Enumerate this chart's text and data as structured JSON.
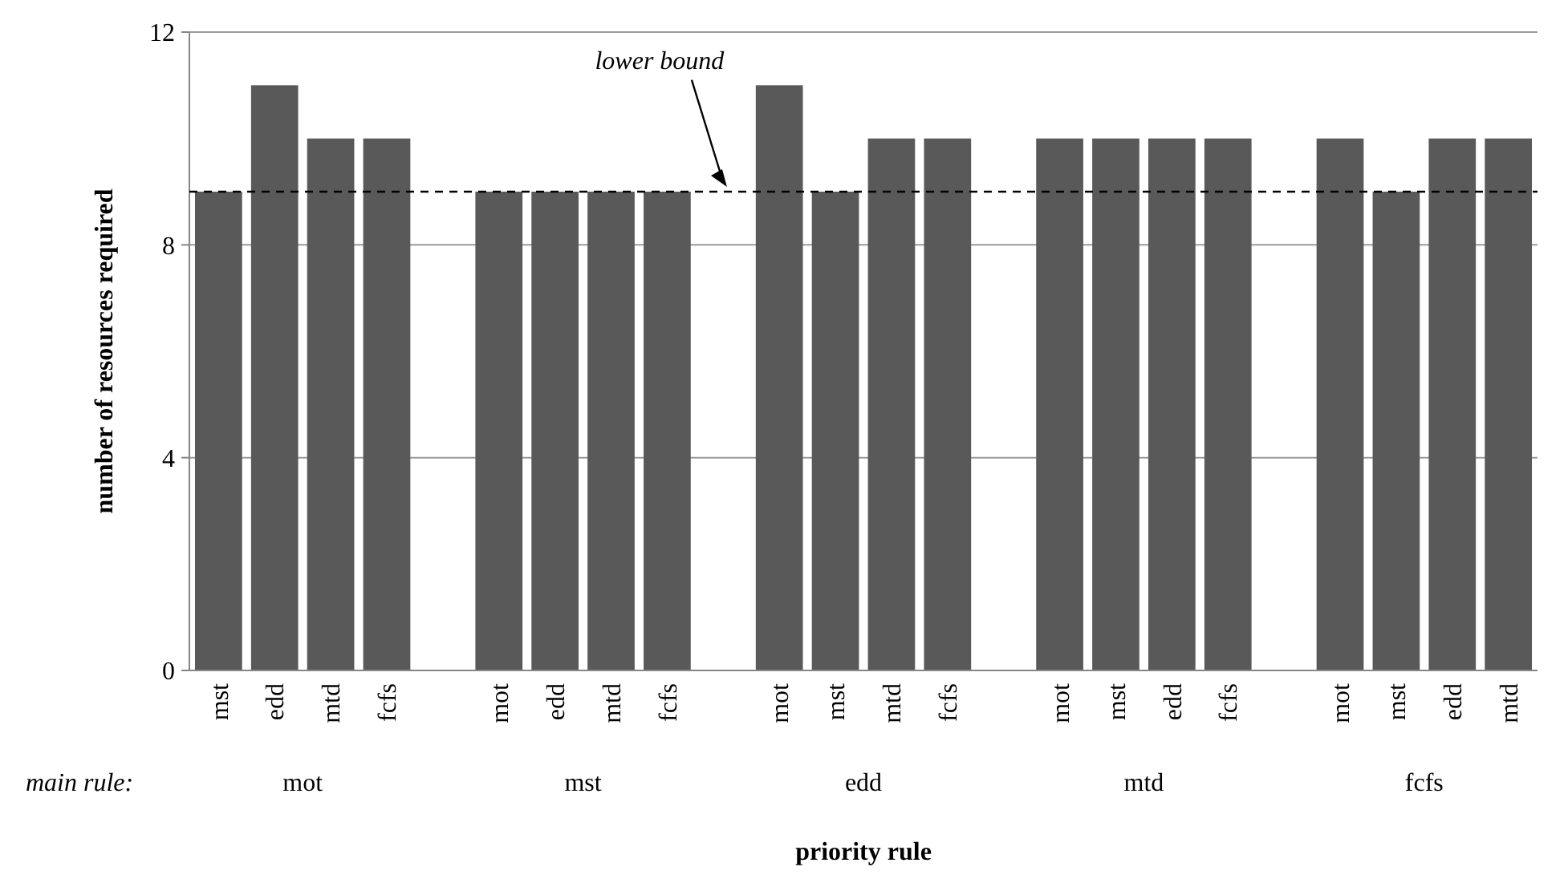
{
  "chart_data": {
    "type": "bar",
    "xlabel": "priority rule",
    "ylabel": "number of resources required",
    "categories": [
      "mst",
      "edd",
      "mtd",
      "fcfs",
      null,
      "mot",
      "edd",
      "mtd",
      "fcfs",
      null,
      "mot",
      "mst",
      "mtd",
      "fcfs",
      null,
      "mot",
      "mst",
      "edd",
      "fcfs",
      null,
      "mot",
      "mst",
      "edd",
      "mtd"
    ],
    "values": [
      9,
      11,
      10,
      10,
      null,
      9,
      9,
      9,
      9,
      null,
      11,
      9,
      10,
      10,
      null,
      10,
      10,
      10,
      10,
      null,
      10,
      9,
      10,
      10
    ],
    "color": "#595959",
    "ylim": [
      0,
      12
    ],
    "yticks": [
      0,
      4,
      8,
      12
    ],
    "grid": "y",
    "ref_lines": [
      {
        "axis": "y",
        "value": 9,
        "label": "lower bound",
        "color": "#000000",
        "line_style": "dashed"
      }
    ],
    "annotations": [
      "main rule:",
      "mot",
      "mst",
      "edd",
      "mtd",
      "fcfs"
    ]
  }
}
